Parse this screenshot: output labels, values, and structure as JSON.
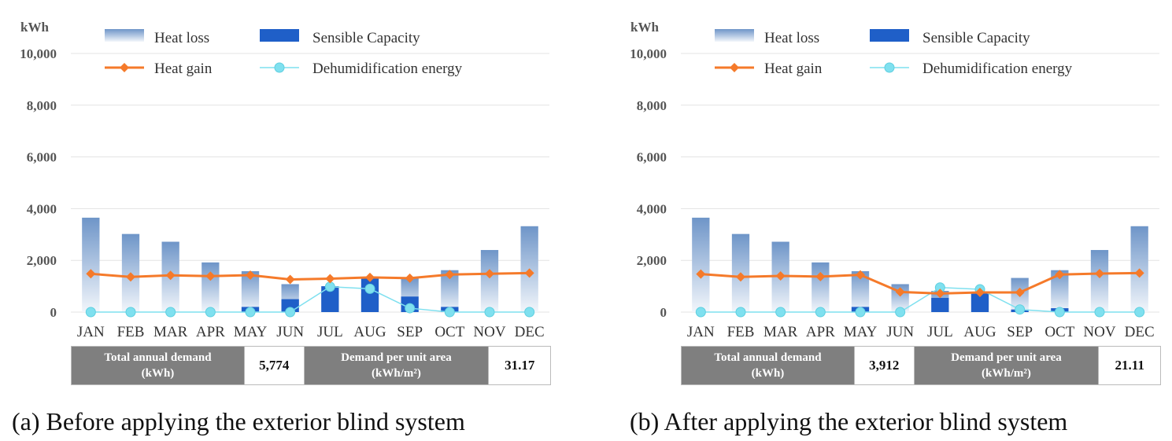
{
  "colors": {
    "heat_loss_top": "#6e95c8",
    "heat_loss_bottom": "#f2f6fb",
    "sensible": "#1f5fc8",
    "heat_gain": "#f57a2a",
    "dehumidification": "#7fe0ef",
    "grid": "#e3e3e3"
  },
  "chart_data": [
    {
      "type": "bar",
      "ylabel": "kWh",
      "ylim": [
        0,
        10000
      ],
      "yticks": [
        "0",
        "2,000",
        "4,000",
        "6,000",
        "8,000",
        "10,000"
      ],
      "categories": [
        "JAN",
        "FEB",
        "MAR",
        "APR",
        "MAY",
        "JUN",
        "JUL",
        "AUG",
        "SEP",
        "OCT",
        "NOV",
        "DEC"
      ],
      "legend_placement": "top",
      "series": [
        {
          "name": "Heat loss",
          "kind": "bar",
          "values": [
            3650,
            3020,
            2720,
            1920,
            1580,
            1080,
            820,
            720,
            1320,
            1620,
            2400,
            3320
          ]
        },
        {
          "name": "Sensible Capacity",
          "kind": "bar",
          "values": [
            0,
            0,
            0,
            0,
            200,
            500,
            1000,
            1300,
            600,
            200,
            0,
            0
          ]
        },
        {
          "name": "Heat gain",
          "kind": "line",
          "values": [
            1480,
            1360,
            1420,
            1390,
            1430,
            1260,
            1290,
            1340,
            1310,
            1450,
            1480,
            1510
          ]
        },
        {
          "name": "Dehumidification energy",
          "kind": "line",
          "values": [
            0,
            0,
            0,
            0,
            0,
            0,
            980,
            900,
            150,
            0,
            0,
            0
          ]
        }
      ],
      "summary": {
        "total_label_1": "Total annual demand",
        "total_label_2": "(kWh)",
        "total_value": "5,774",
        "unit_label_1": "Demand per unit area",
        "unit_label_2": "(kWh/m²)",
        "unit_value": "31.17"
      },
      "caption": "(a) Before applying the exterior blind system"
    },
    {
      "type": "bar",
      "ylabel": "kWh",
      "ylim": [
        0,
        10000
      ],
      "yticks": [
        "0",
        "2,000",
        "4,000",
        "6,000",
        "8,000",
        "10,000"
      ],
      "categories": [
        "JAN",
        "FEB",
        "MAR",
        "APR",
        "MAY",
        "JUN",
        "JUL",
        "AUG",
        "SEP",
        "OCT",
        "NOV",
        "DEC"
      ],
      "legend_placement": "top",
      "series": [
        {
          "name": "Heat loss",
          "kind": "bar",
          "values": [
            3650,
            3020,
            2720,
            1920,
            1580,
            1080,
            820,
            720,
            1320,
            1620,
            2400,
            3320
          ]
        },
        {
          "name": "Sensible Capacity",
          "kind": "bar",
          "values": [
            0,
            0,
            0,
            0,
            200,
            0,
            550,
            750,
            100,
            150,
            0,
            0
          ]
        },
        {
          "name": "Heat gain",
          "kind": "line",
          "values": [
            1470,
            1360,
            1400,
            1370,
            1440,
            780,
            720,
            760,
            760,
            1450,
            1490,
            1510
          ]
        },
        {
          "name": "Dehumidification energy",
          "kind": "line",
          "values": [
            0,
            0,
            0,
            0,
            0,
            0,
            950,
            880,
            100,
            0,
            0,
            0
          ]
        }
      ],
      "summary": {
        "total_label_1": "Total annual demand",
        "total_label_2": "(kWh)",
        "total_value": "3,912",
        "unit_label_1": "Demand per unit area",
        "unit_label_2": "(kWh/m²)",
        "unit_value": "21.11"
      },
      "caption": "(b) After applying the exterior blind system"
    }
  ]
}
